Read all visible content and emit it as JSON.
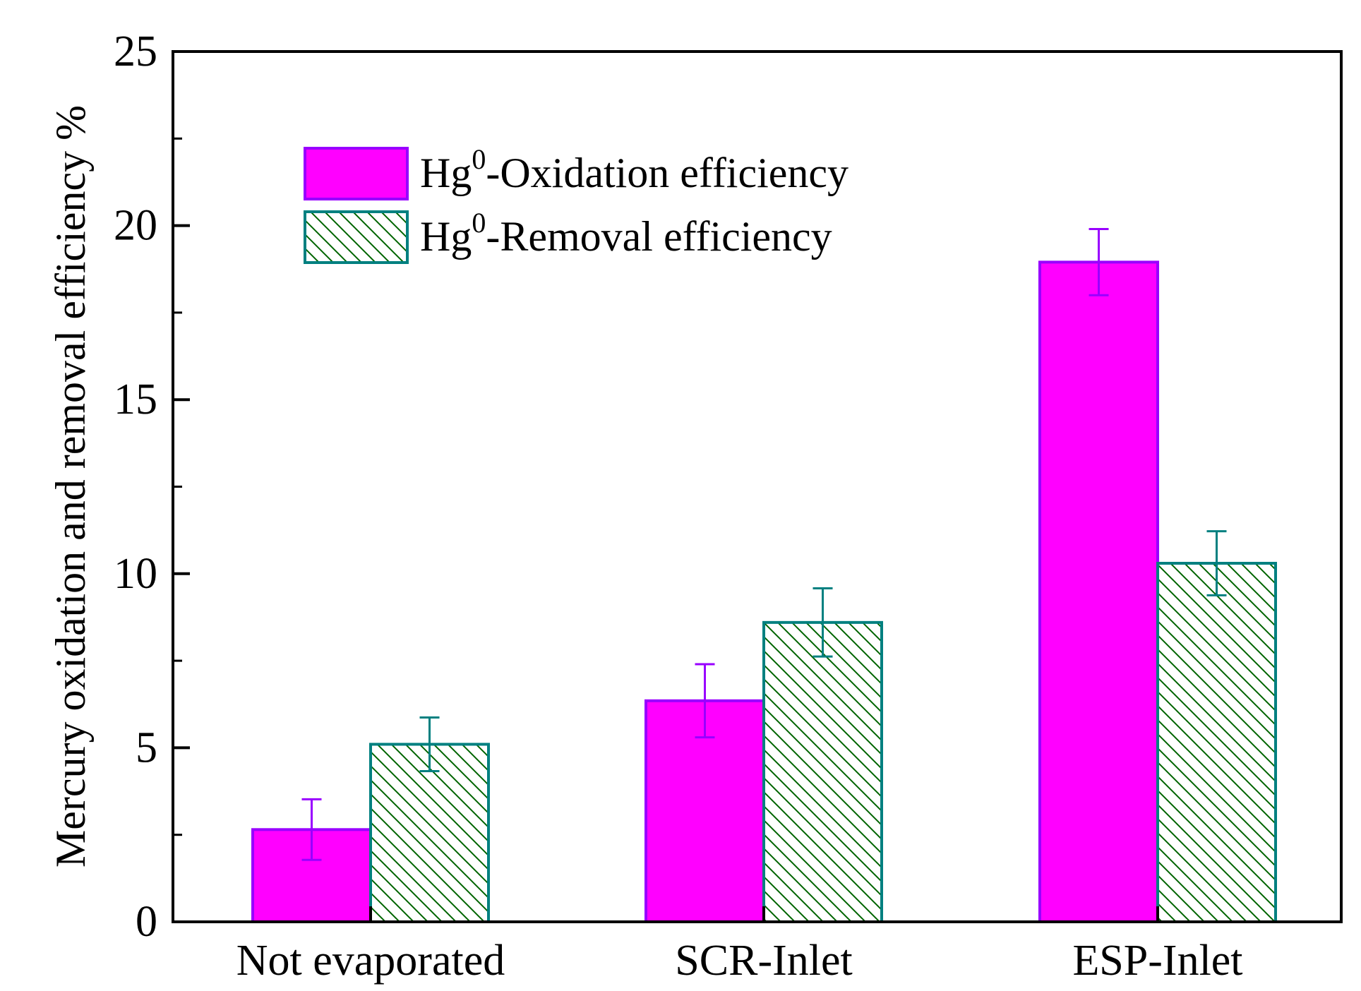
{
  "chart_data": {
    "type": "bar",
    "categories": [
      "Not evaporated",
      "SCR-Inlet",
      "ESP-Inlet"
    ],
    "series": [
      {
        "name": "Hg⁰-Oxidation efficiency",
        "name_base": "Hg",
        "name_sup": "0",
        "name_rest": "-Oxidation efficiency",
        "values": [
          2.65,
          6.35,
          18.95
        ],
        "errors": [
          0.87,
          1.05,
          0.95
        ],
        "fill": "#ff00ff",
        "edge": "#9900ff",
        "pattern": "solid"
      },
      {
        "name": "Hg⁰-Removal efficiency",
        "name_base": "Hg",
        "name_sup": "0",
        "name_rest": "-Removal efficiency",
        "values": [
          5.1,
          8.6,
          10.3
        ],
        "errors": [
          0.77,
          0.98,
          0.92
        ],
        "fill": "#ffffff",
        "edge": "#008080",
        "pattern": "hatch",
        "hatch_color": "#006400"
      }
    ],
    "ylabel": "Mercury oxidation and removal efficiency %",
    "xlabel": "",
    "ylim": [
      0,
      25
    ],
    "yticks": [
      0,
      5,
      10,
      15,
      20,
      25
    ],
    "yminor_step": 2.5,
    "grid": false,
    "legend_position": "top-left"
  }
}
